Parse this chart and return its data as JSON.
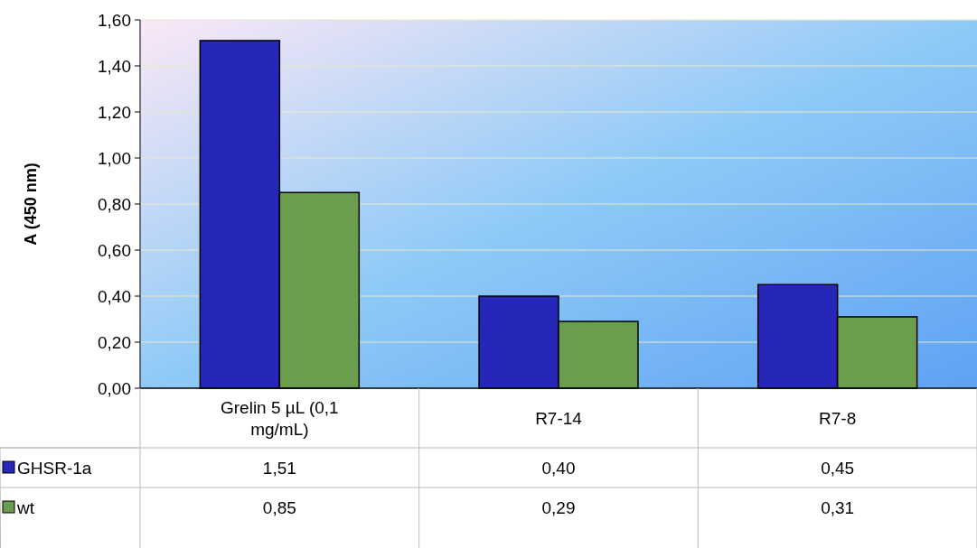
{
  "chart_data": {
    "type": "bar",
    "ylabel": "A (450 nm)",
    "categories": [
      "Grelin 5 µL (0,1 mg/mL)",
      "R7-14",
      "R7-8"
    ],
    "series": [
      {
        "name": "GHSR-1a",
        "color": "#2626b8",
        "values": [
          1.51,
          0.4,
          0.45
        ],
        "value_labels": [
          "1,51",
          "0,40",
          "0,45"
        ]
      },
      {
        "name": "wt",
        "color": "#6a9e4e",
        "values": [
          0.85,
          0.29,
          0.31
        ],
        "value_labels": [
          "0,85",
          "0,29",
          "0,31"
        ]
      }
    ],
    "ylim": [
      0,
      1.6
    ],
    "yticks": [
      {
        "value": 0,
        "label": "0,00"
      },
      {
        "value": 0.2,
        "label": "0,20"
      },
      {
        "value": 0.4,
        "label": "0,40"
      },
      {
        "value": 0.6,
        "label": "0,60"
      },
      {
        "value": 0.8,
        "label": "0,80"
      },
      {
        "value": 1,
        "label": "1,00"
      },
      {
        "value": 1.2,
        "label": "1,20"
      },
      {
        "value": 1.4,
        "label": "1,40"
      },
      {
        "value": 1.6,
        "label": "1,60"
      }
    ],
    "grid": "y",
    "legend": "bottom left"
  }
}
